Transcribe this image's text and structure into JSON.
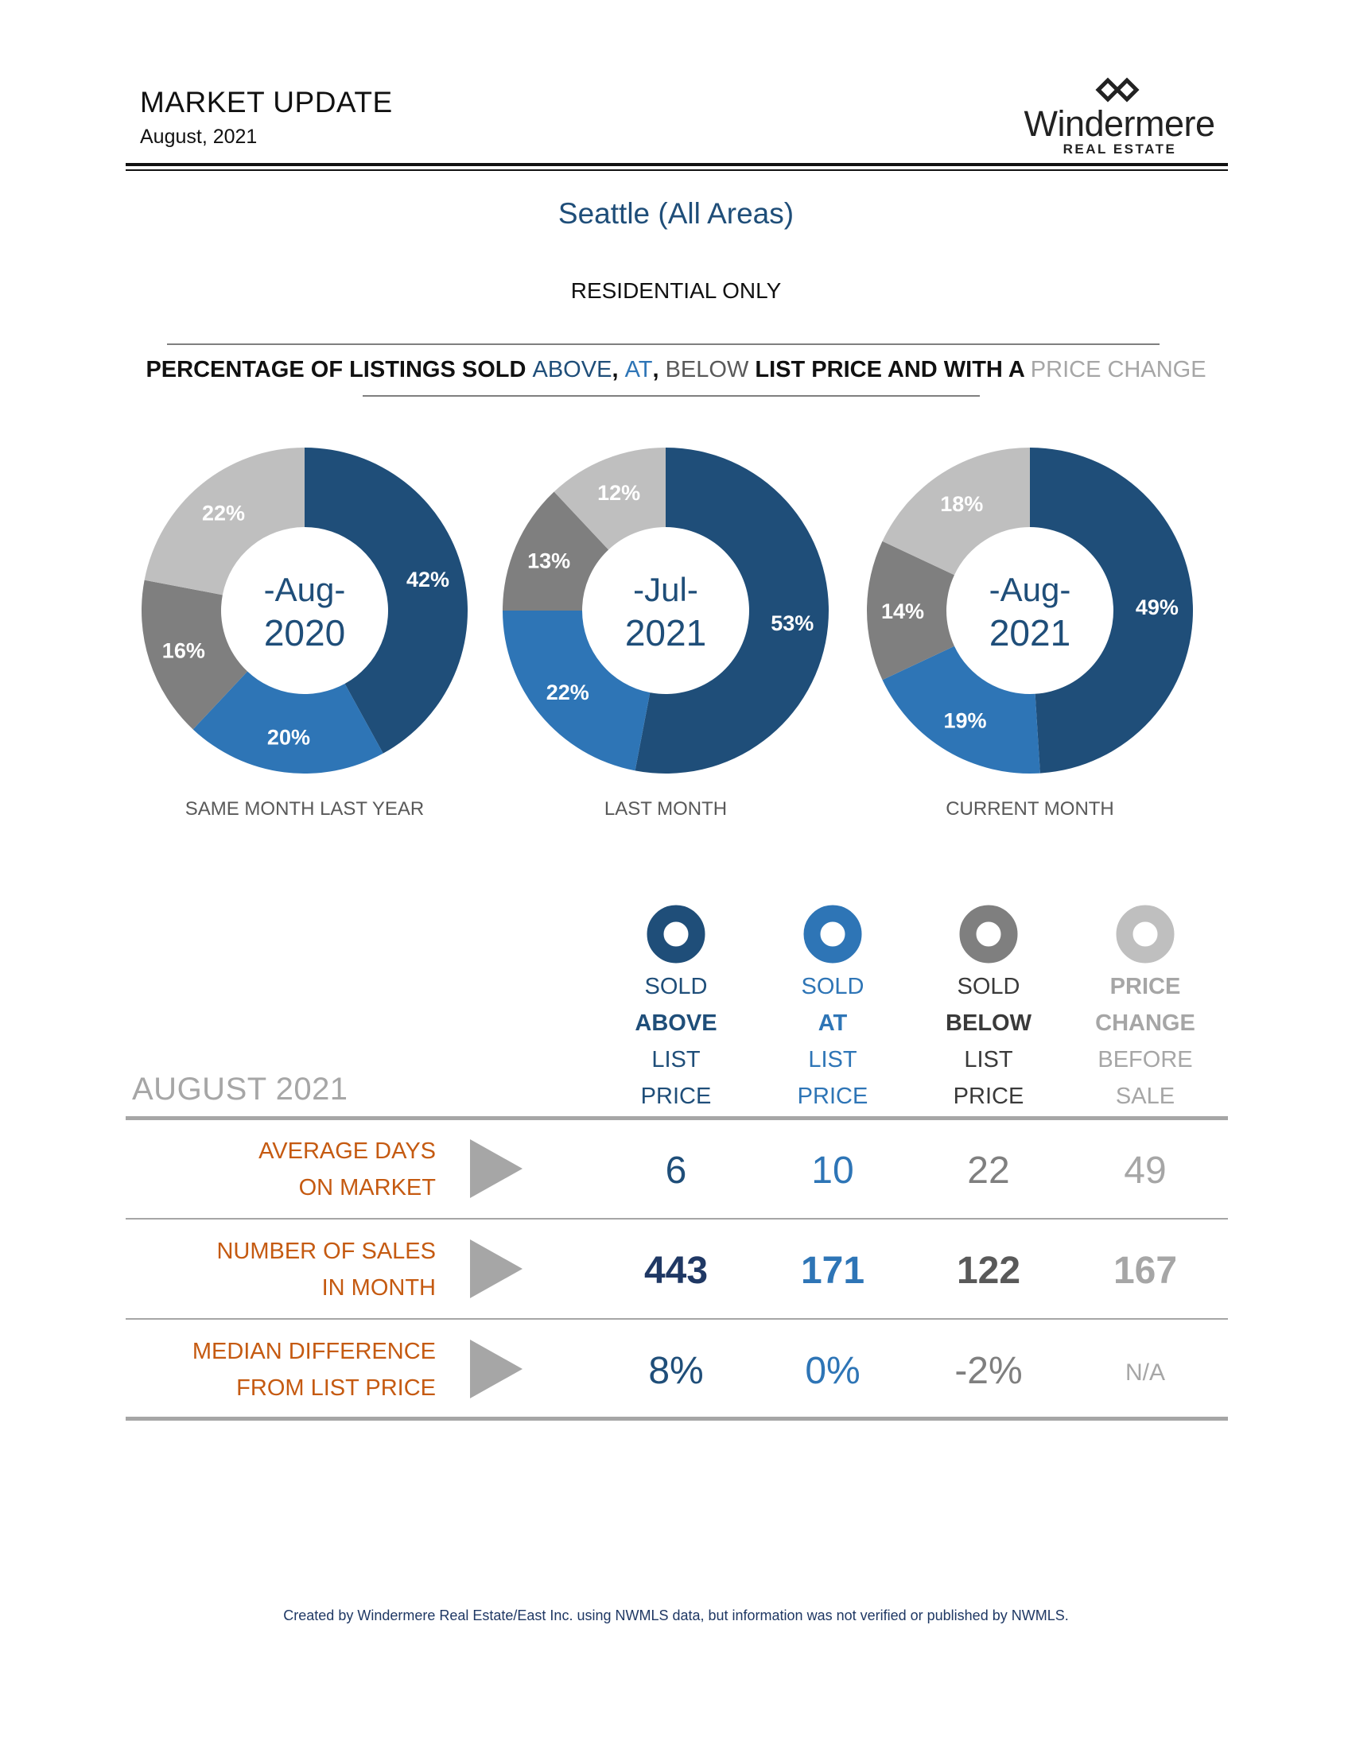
{
  "header": {
    "title": "MARKET UPDATE",
    "date": "August, 2021",
    "logo_name": "Windermere",
    "logo_sub": "REAL ESTATE"
  },
  "region": "Seattle (All Areas)",
  "subtype": "RESIDENTIAL ONLY",
  "section_title": {
    "part1": "PERCENTAGE OF LISTINGS SOLD ",
    "above": "ABOVE",
    "comma1": ", ",
    "at": "AT",
    "comma2": ", ",
    "below": "BELOW",
    "part2": " LIST PRICE AND WITH A ",
    "change": "PRICE CHANGE"
  },
  "colors": {
    "above": "#1f4e79",
    "at": "#2e75b6",
    "below": "#7f7f7f",
    "change": "#bfbfbf",
    "label_orange": "#c55a11"
  },
  "chart_data": [
    {
      "type": "pie",
      "center_label": [
        "-Aug-",
        "2020"
      ],
      "caption": "SAME MONTH LAST YEAR",
      "slices": [
        {
          "name": "ABOVE",
          "value": 42,
          "label": "42%"
        },
        {
          "name": "AT",
          "value": 20,
          "label": "20%"
        },
        {
          "name": "BELOW",
          "value": 16,
          "label": "16%"
        },
        {
          "name": "PRICE CHANGE",
          "value": 22,
          "label": "22%"
        }
      ]
    },
    {
      "type": "pie",
      "center_label": [
        "-Jul-",
        "2021"
      ],
      "caption": "LAST MONTH",
      "slices": [
        {
          "name": "ABOVE",
          "value": 53,
          "label": "53%"
        },
        {
          "name": "AT",
          "value": 22,
          "label": "22%"
        },
        {
          "name": "BELOW",
          "value": 13,
          "label": "13%"
        },
        {
          "name": "PRICE CHANGE",
          "value": 12,
          "label": "12%"
        }
      ]
    },
    {
      "type": "pie",
      "center_label": [
        "-Aug-",
        "2021"
      ],
      "caption": "CURRENT MONTH",
      "slices": [
        {
          "name": "ABOVE",
          "value": 49,
          "label": "49%"
        },
        {
          "name": "AT",
          "value": 19,
          "label": "19%"
        },
        {
          "name": "BELOW",
          "value": 14,
          "label": "14%"
        },
        {
          "name": "PRICE CHANGE",
          "value": 18,
          "label": "18%"
        }
      ]
    }
  ],
  "table": {
    "month_label": "AUGUST 2021",
    "columns": [
      {
        "key": "above",
        "lines": [
          "SOLD",
          "ABOVE",
          "LIST",
          "PRICE"
        ]
      },
      {
        "key": "at",
        "lines": [
          "SOLD",
          "AT",
          "LIST",
          "PRICE"
        ]
      },
      {
        "key": "below",
        "lines": [
          "SOLD",
          "BELOW",
          "LIST",
          "PRICE"
        ]
      },
      {
        "key": "change",
        "lines": [
          "PRICE",
          "CHANGE",
          "BEFORE",
          "SALE"
        ]
      }
    ],
    "rows": [
      {
        "label": [
          "AVERAGE DAYS",
          "ON MARKET"
        ],
        "values": [
          "6",
          "10",
          "22",
          "49"
        ]
      },
      {
        "label": [
          "NUMBER OF SALES",
          "IN MONTH"
        ],
        "values": [
          "443",
          "171",
          "122",
          "167"
        ]
      },
      {
        "label": [
          "MEDIAN DIFFERENCE",
          "FROM LIST PRICE"
        ],
        "values": [
          "8%",
          "0%",
          "-2%",
          "N/A"
        ]
      }
    ]
  },
  "footer": "Created by Windermere Real Estate/East Inc. using NWMLS data, but information was not verified or published by NWMLS."
}
